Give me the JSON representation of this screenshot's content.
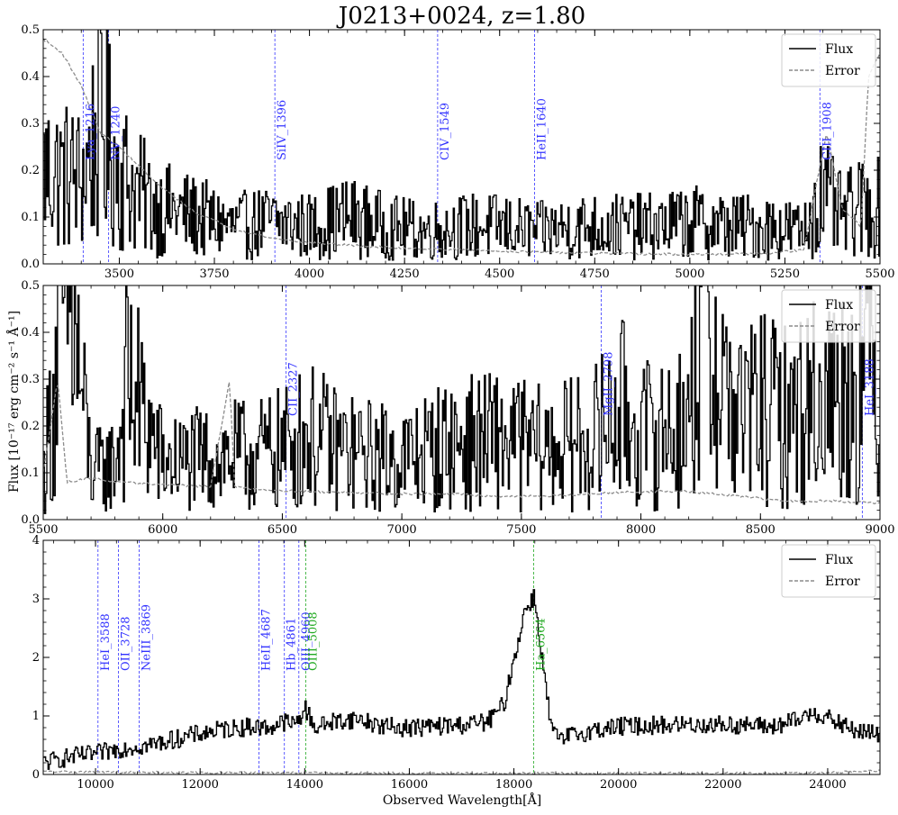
{
  "figure": {
    "title": "J0213+0024, z=1.80",
    "xlabel": "Observed Wavelength[Å]",
    "ylabel": "Flux [10⁻¹⁷ erg cm⁻² s⁻¹ Å⁻¹]"
  },
  "legend": {
    "flux": "Flux",
    "error": "Error"
  },
  "colors": {
    "flux": "#000000",
    "error": "#8c8c8c",
    "line_blue": "#3333ff",
    "line_green": "#22aa22"
  },
  "chart_data": [
    {
      "type": "line",
      "panel": "top",
      "xlim": [
        3300,
        5500
      ],
      "ylim": [
        0,
        0.5
      ],
      "xticks": [
        "3500",
        "3750",
        "4000",
        "4250",
        "4500",
        "4750",
        "5000",
        "5250",
        "5500"
      ],
      "xtick_values": [
        3500,
        3750,
        4000,
        4250,
        4500,
        4750,
        5000,
        5250,
        5500
      ],
      "yticks": [
        "0.0",
        "0.1",
        "0.2",
        "0.3",
        "0.4",
        "0.5"
      ],
      "ytick_values": [
        0,
        0.1,
        0.2,
        0.3,
        0.4,
        0.5
      ],
      "legend_position": "top-right",
      "lines": [
        {
          "label": "Lya_1216",
          "x": 3405,
          "color": "blue"
        },
        {
          "label": "NV_1240",
          "x": 3472,
          "color": "blue"
        },
        {
          "label": "SiIV_1396",
          "x": 3909,
          "color": "blue"
        },
        {
          "label": "CIV_1549",
          "x": 4337,
          "color": "blue"
        },
        {
          "label": "HeII_1640",
          "x": 4592,
          "color": "blue"
        },
        {
          "label": "CIII_1908",
          "x": 5342,
          "color": "blue"
        }
      ],
      "series": [
        {
          "name": "Flux",
          "x": [
            3300,
            3400,
            3450,
            3500,
            3550,
            3600,
            3700,
            3800,
            3900,
            4000,
            4100,
            4200,
            4300,
            4400,
            4500,
            4600,
            4700,
            4800,
            4900,
            5000,
            5100,
            5200,
            5300,
            5340,
            5400,
            5450,
            5500
          ],
          "y": [
            0.2,
            0.18,
            0.3,
            0.2,
            0.15,
            0.12,
            0.1,
            0.08,
            0.09,
            0.08,
            0.1,
            0.08,
            0.07,
            0.08,
            0.08,
            0.07,
            0.08,
            0.08,
            0.08,
            0.09,
            0.08,
            0.08,
            0.07,
            0.15,
            0.1,
            0.12,
            0.12
          ]
        },
        {
          "name": "Error",
          "x": [
            3300,
            3350,
            3400,
            3450,
            3500,
            3550,
            3600,
            3700,
            3800,
            3900,
            4000,
            4200,
            4400,
            4600,
            4800,
            5000,
            5200,
            5300,
            5340,
            5360,
            5400,
            5450,
            5470,
            5500
          ],
          "y": [
            0.48,
            0.45,
            0.38,
            0.28,
            0.25,
            0.21,
            0.17,
            0.11,
            0.075,
            0.055,
            0.045,
            0.035,
            0.03,
            0.025,
            0.022,
            0.02,
            0.022,
            0.03,
            0.2,
            0.28,
            0.12,
            0.08,
            0.4,
            0.45
          ]
        }
      ]
    },
    {
      "type": "line",
      "panel": "middle",
      "xlim": [
        5500,
        9000
      ],
      "ylim": [
        0,
        0.5
      ],
      "xticks": [
        "5500",
        "6000",
        "6500",
        "7000",
        "7500",
        "8000",
        "8500",
        "9000"
      ],
      "xtick_values": [
        5500,
        6000,
        6500,
        7000,
        7500,
        8000,
        8500,
        9000
      ],
      "yticks": [
        "0.0",
        "0.1",
        "0.2",
        "0.3",
        "0.4",
        "0.5"
      ],
      "ytick_values": [
        0,
        0.1,
        0.2,
        0.3,
        0.4,
        0.5
      ],
      "legend_position": "top-right",
      "lines": [
        {
          "label": "CII_2327",
          "x": 6516,
          "color": "blue"
        },
        {
          "label": "MgII_2798",
          "x": 7834,
          "color": "blue"
        },
        {
          "label": "HeI_3188",
          "x": 8926,
          "color": "blue"
        }
      ],
      "series": [
        {
          "name": "Flux",
          "x": [
            5500,
            5600,
            5700,
            5800,
            5850,
            6000,
            6200,
            6400,
            6500,
            6600,
            6800,
            7000,
            7200,
            7400,
            7600,
            7800,
            7900,
            8000,
            8200,
            8250,
            8300,
            8400,
            8500,
            8600,
            8700,
            8800,
            8900,
            8930,
            9000
          ],
          "y": [
            0.1,
            0.5,
            0.1,
            0.12,
            0.3,
            0.12,
            0.13,
            0.14,
            0.15,
            0.18,
            0.14,
            0.13,
            0.16,
            0.17,
            0.15,
            0.17,
            0.24,
            0.18,
            0.2,
            0.5,
            0.35,
            0.22,
            0.24,
            0.22,
            0.25,
            0.27,
            0.28,
            0.38,
            0.25
          ]
        },
        {
          "name": "Error",
          "x": [
            5500,
            5560,
            5600,
            5700,
            5800,
            6000,
            6200,
            6280,
            6300,
            6400,
            6600,
            6800,
            7000,
            7200,
            7400,
            7600,
            7800,
            8000,
            8200,
            8400,
            8600,
            8800,
            9000
          ],
          "y": [
            0.1,
            0.3,
            0.08,
            0.09,
            0.08,
            0.075,
            0.07,
            0.3,
            0.07,
            0.065,
            0.06,
            0.058,
            0.055,
            0.055,
            0.05,
            0.05,
            0.055,
            0.06,
            0.06,
            0.05,
            0.04,
            0.04,
            0.035
          ]
        }
      ]
    },
    {
      "type": "line",
      "panel": "bottom",
      "xlim": [
        9000,
        25000
      ],
      "ylim": [
        0,
        4
      ],
      "xticks": [
        "10000",
        "12000",
        "14000",
        "16000",
        "18000",
        "20000",
        "22000",
        "24000"
      ],
      "xtick_values": [
        10000,
        12000,
        14000,
        16000,
        18000,
        20000,
        22000,
        24000
      ],
      "yticks": [
        "0",
        "1",
        "2",
        "3",
        "4"
      ],
      "ytick_values": [
        0,
        1,
        2,
        3,
        4
      ],
      "legend_position": "top-right",
      "lines": [
        {
          "label": "HeI_3588",
          "x": 10047,
          "color": "blue"
        },
        {
          "label": "OII_3728",
          "x": 10438,
          "color": "blue"
        },
        {
          "label": "NeIII_3869",
          "x": 10833,
          "color": "blue"
        },
        {
          "label": "HeII_4687",
          "x": 13124,
          "color": "blue"
        },
        {
          "label": "Hb_4861",
          "x": 13611,
          "color": "blue"
        },
        {
          "label": "OIII_4960",
          "x": 13888,
          "color": "blue"
        },
        {
          "label": "OIII_5008",
          "x": 14022,
          "color": "green"
        },
        {
          "label": "Ha_6564",
          "x": 18379,
          "color": "green"
        }
      ],
      "series": [
        {
          "name": "Flux",
          "x": [
            9000,
            9500,
            10000,
            10500,
            11000,
            11500,
            12000,
            12500,
            13000,
            13300,
            13600,
            13800,
            14000,
            14200,
            14500,
            15000,
            15500,
            16000,
            16500,
            17000,
            17500,
            17800,
            18000,
            18200,
            18380,
            18500,
            18700,
            18900,
            19000,
            19500,
            20000,
            21000,
            22000,
            23000,
            23500,
            23700,
            24000,
            24500,
            25000
          ],
          "y": [
            0.2,
            0.3,
            0.35,
            0.45,
            0.5,
            0.6,
            0.7,
            0.78,
            0.82,
            0.8,
            0.9,
            0.85,
            1.12,
            0.8,
            0.9,
            0.95,
            0.82,
            0.8,
            0.82,
            0.85,
            0.9,
            1.2,
            2.0,
            2.8,
            3.05,
            2.2,
            0.8,
            0.55,
            0.65,
            0.75,
            0.82,
            0.85,
            0.85,
            0.82,
            0.95,
            1.08,
            0.95,
            0.75,
            0.68
          ]
        },
        {
          "name": "Error",
          "x": [
            9000,
            10000,
            12000,
            14000,
            16000,
            18000,
            20000,
            22000,
            24000,
            25000
          ],
          "y": [
            0.05,
            0.04,
            0.03,
            0.03,
            0.02,
            0.02,
            0.02,
            0.02,
            0.03,
            0.06
          ]
        }
      ]
    }
  ]
}
